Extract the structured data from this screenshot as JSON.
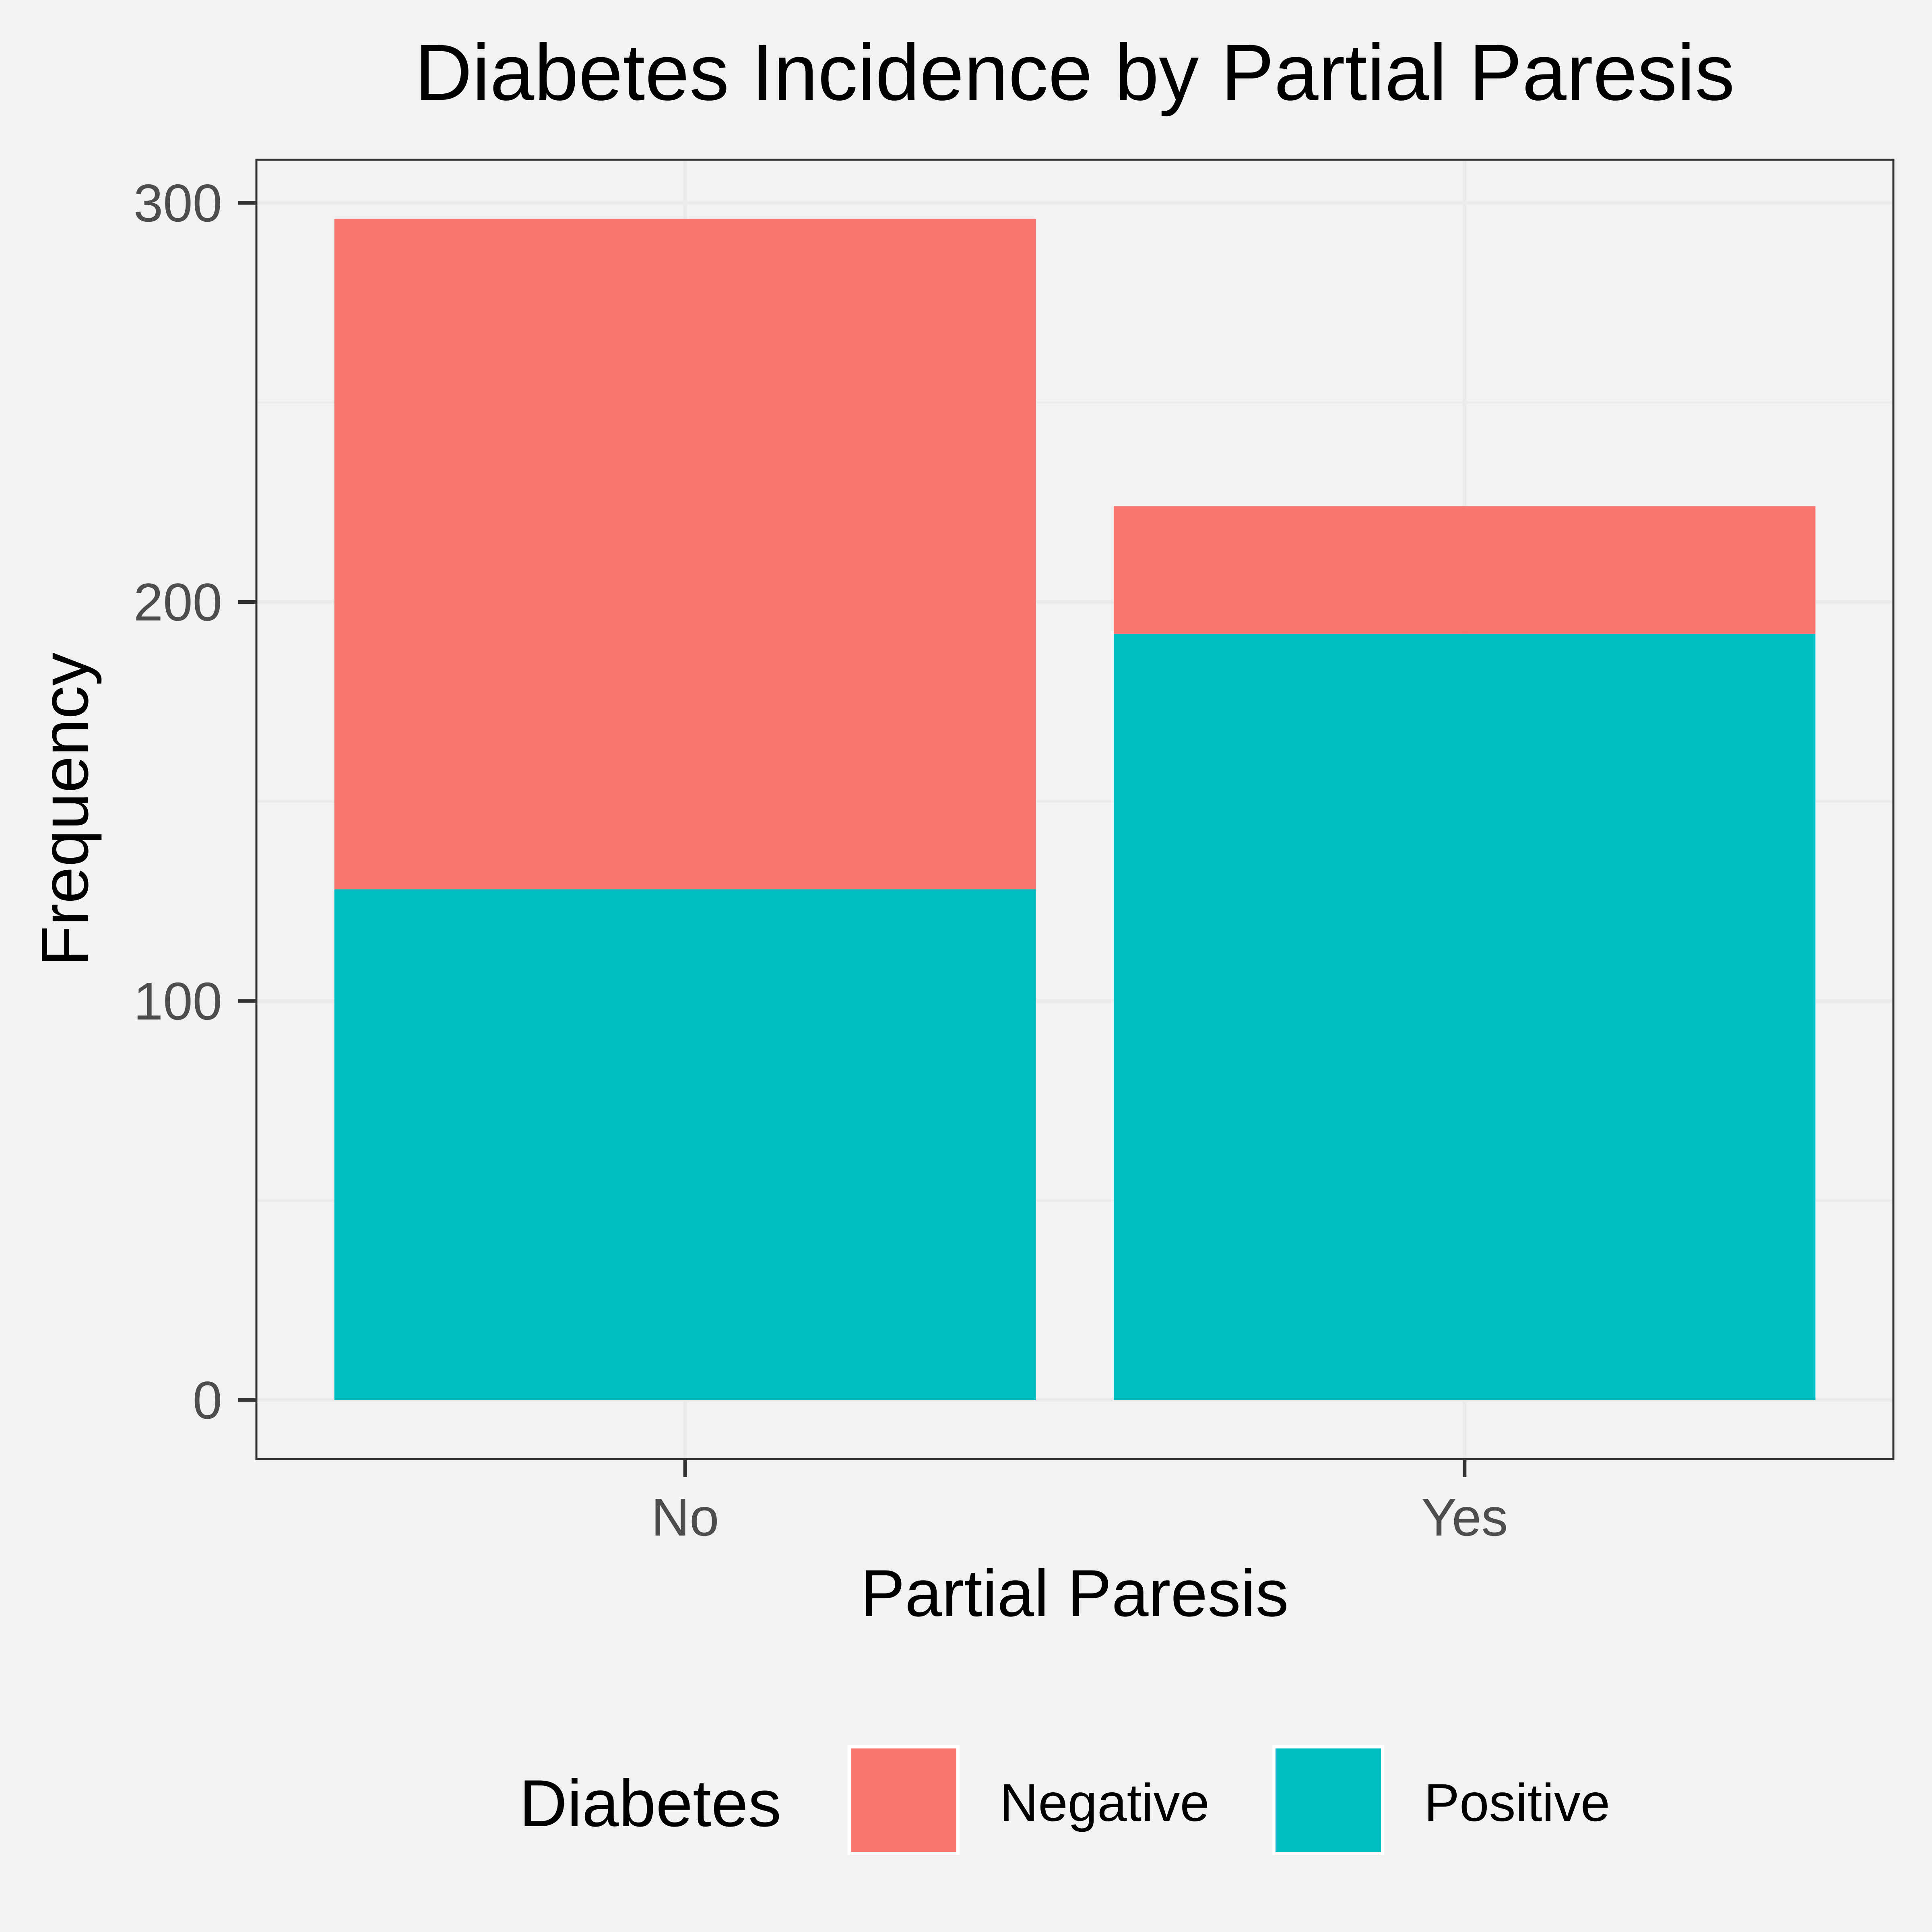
{
  "chart_data": {
    "type": "bar",
    "stacked": true,
    "title": "Diabetes Incidence by Partial Paresis",
    "xlabel": "Partial Paresis",
    "ylabel": "Frequency",
    "categories": [
      "No",
      "Yes"
    ],
    "series": [
      {
        "name": "Positive",
        "values": [
          128,
          192
        ],
        "color": "#00BFC4"
      },
      {
        "name": "Negative",
        "values": [
          168,
          32
        ],
        "color": "#F8766D"
      }
    ],
    "ylim": [
      -14.8,
      310.8
    ],
    "yticks": [
      "0",
      "100",
      "200",
      "300"
    ],
    "grid": true,
    "legend": {
      "title": "Diabetes",
      "position": "bottom",
      "entries": [
        {
          "label": "Negative",
          "color": "#F8766D"
        },
        {
          "label": "Positive",
          "color": "#00BFC4"
        }
      ]
    }
  }
}
